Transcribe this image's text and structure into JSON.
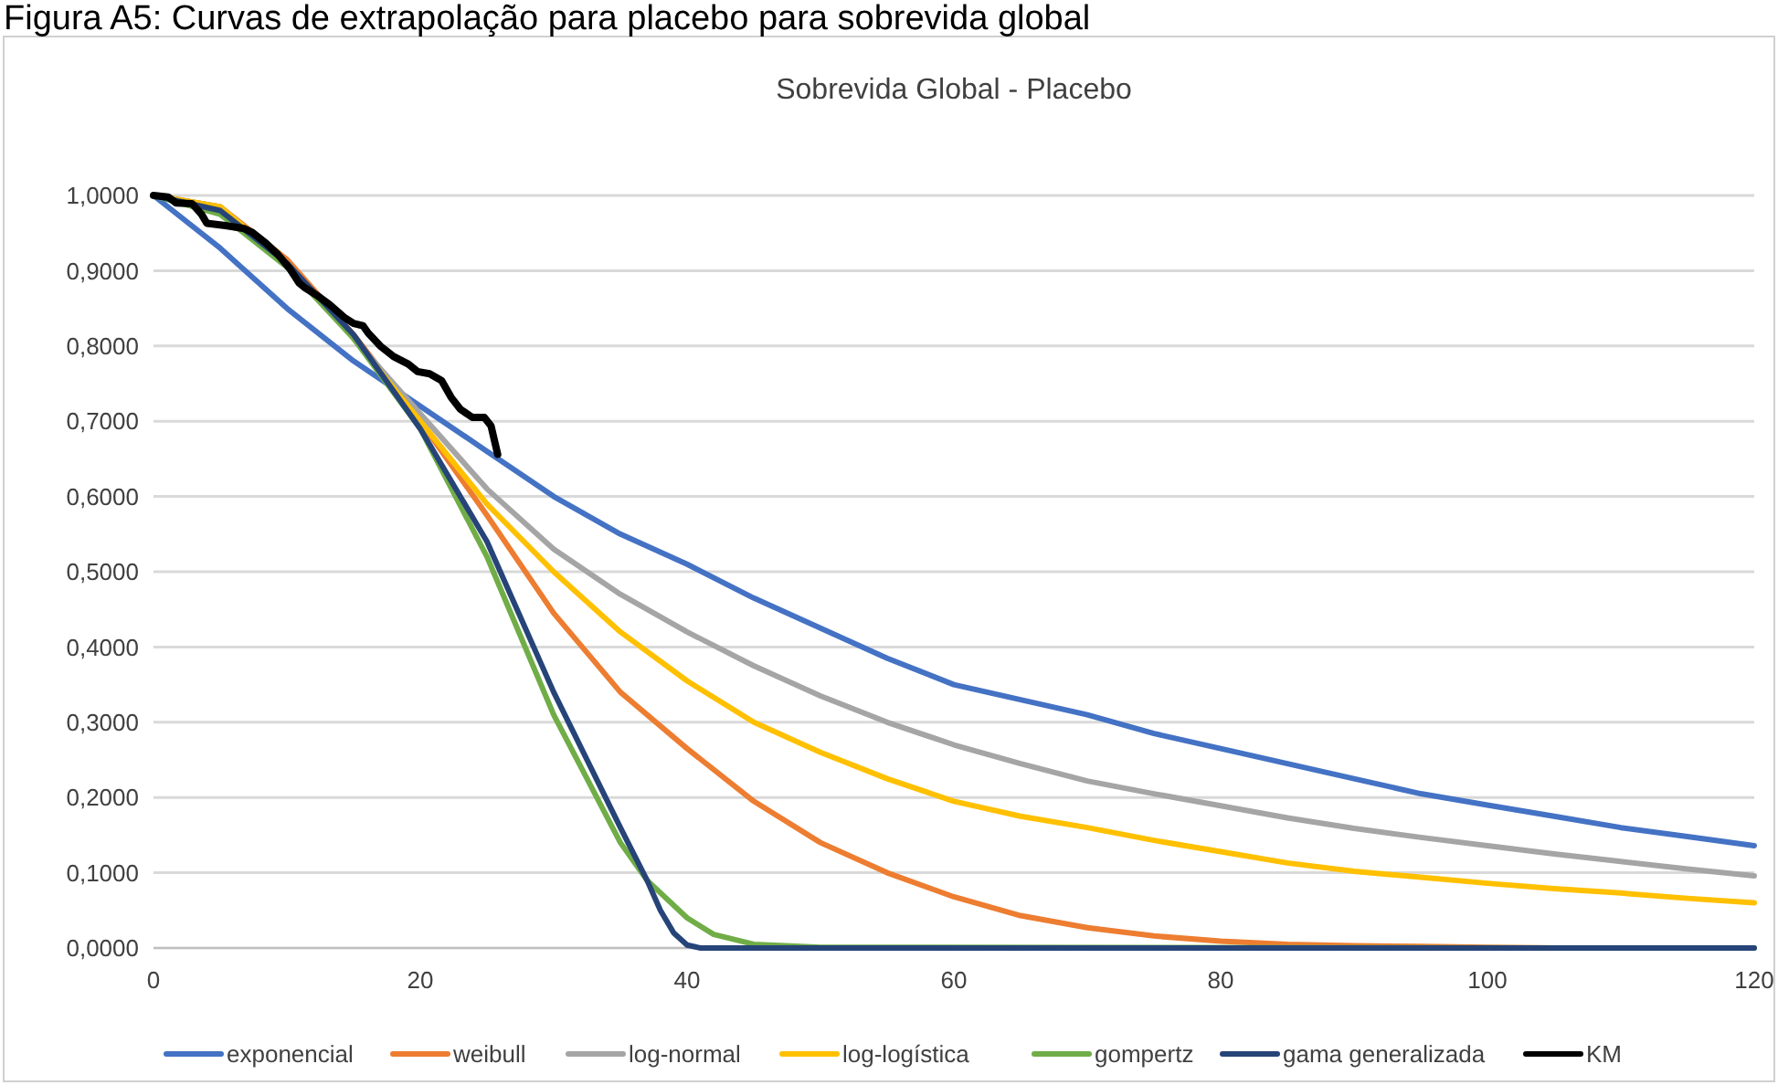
{
  "chart_data": {
    "type": "line",
    "title": "Figura A5: Curvas de extrapolação para placebo para sobrevida global",
    "subtitle": "Sobrevida Global - Placebo",
    "xlim": [
      0,
      120
    ],
    "xticks": [
      0,
      20,
      40,
      60,
      80,
      100,
      120
    ],
    "ylim": [
      0,
      1
    ],
    "yticks": [
      {
        "value": 0,
        "label": "0,0000"
      },
      {
        "value": 0.1,
        "label": "0,1000"
      },
      {
        "value": 0.2,
        "label": "0,2000"
      },
      {
        "value": 0.3,
        "label": "0,3000"
      },
      {
        "value": 0.4,
        "label": "0,4000"
      },
      {
        "value": 0.5,
        "label": "0,5000"
      },
      {
        "value": 0.6,
        "label": "0,6000"
      },
      {
        "value": 0.7,
        "label": "0,7000"
      },
      {
        "value": 0.8,
        "label": "0,8000"
      },
      {
        "value": 0.9,
        "label": "0,9000"
      },
      {
        "value": 1,
        "label": "1,0000"
      }
    ],
    "grid": "y",
    "legend": "bottom",
    "marker": "none",
    "line_style": "solid",
    "x": [
      0,
      5,
      10,
      15,
      20,
      25,
      30,
      35,
      40,
      45,
      50,
      55,
      60,
      65,
      70,
      75,
      80,
      85,
      90,
      95,
      100,
      105,
      110,
      115,
      120
    ],
    "series": [
      {
        "name": "exponencial",
        "color": "#4472c4",
        "values": [
          1,
          0.93,
          0.85,
          0.78,
          0.72,
          0.66,
          0.6,
          0.55,
          0.51,
          0.465,
          0.425,
          0.385,
          0.35,
          0.33,
          0.31,
          0.285,
          0.265,
          0.245,
          0.225,
          0.205,
          0.19,
          0.175,
          0.16,
          0.148,
          0.136
        ]
      },
      {
        "name": "weibull",
        "color": "#ed7d31",
        "values": [
          1,
          0.985,
          0.915,
          0.815,
          0.7,
          0.575,
          0.445,
          0.34,
          0.265,
          0.195,
          0.14,
          0.1,
          0.068,
          0.043,
          0.027,
          0.016,
          0.009,
          0.005,
          0.003,
          0.002,
          0.001,
          0,
          0,
          null,
          null
        ]
      },
      {
        "name": "log-normal",
        "color": "#a5a5a5",
        "values": [
          1,
          0.985,
          0.91,
          0.81,
          0.71,
          0.61,
          0.53,
          0.47,
          0.42,
          0.375,
          0.335,
          0.3,
          0.27,
          0.245,
          0.222,
          0.205,
          0.189,
          0.173,
          0.159,
          0.147,
          0.136,
          0.125,
          0.115,
          0.105,
          0.096
        ]
      },
      {
        "name": "log-logística",
        "color": "#ffc000",
        "values": [
          1,
          0.985,
          0.91,
          0.81,
          0.7,
          0.59,
          0.5,
          0.42,
          0.355,
          0.3,
          0.26,
          0.225,
          0.195,
          0.175,
          0.16,
          0.143,
          0.128,
          0.113,
          0.102,
          0.094,
          0.086,
          0.079,
          0.073,
          0.066,
          0.06
        ]
      },
      {
        "name": "gompertz",
        "color": "#70ad47",
        "x": [
          0,
          5,
          10,
          15,
          20,
          25,
          30,
          35,
          37,
          40,
          42,
          45,
          50,
          120
        ],
        "values": [
          1,
          0.975,
          0.905,
          0.81,
          0.69,
          0.52,
          0.31,
          0.14,
          0.09,
          0.04,
          0.018,
          0.005,
          0.001,
          0
        ]
      },
      {
        "name": "gama generalizada",
        "color": "#264478",
        "x": [
          0,
          5,
          10,
          15,
          20,
          25,
          30,
          35,
          37,
          38,
          39,
          40,
          41,
          120
        ],
        "values": [
          1,
          0.98,
          0.91,
          0.815,
          0.69,
          0.54,
          0.34,
          0.16,
          0.09,
          0.05,
          0.02,
          0.004,
          0,
          0
        ]
      },
      {
        "name": "KM",
        "color": "#000000",
        "x": [
          0,
          1.1,
          1.7,
          2.9,
          3.6,
          4.0,
          5.4,
          6.8,
          7.4,
          8.4,
          9.3,
          10.2,
          10.9,
          11.3,
          12.2,
          13.2,
          14.3,
          15.0,
          15.7,
          16.1,
          17.0,
          18.0,
          19.1,
          19.8,
          20.7,
          21.6,
          22.3,
          23.0,
          23.9,
          24.8,
          25.3,
          25.8
        ],
        "values": [
          1,
          0.998,
          0.99,
          0.989,
          0.975,
          0.963,
          0.96,
          0.956,
          0.951,
          0.937,
          0.922,
          0.903,
          0.884,
          0.878,
          0.868,
          0.855,
          0.838,
          0.83,
          0.827,
          0.817,
          0.8,
          0.786,
          0.776,
          0.766,
          0.763,
          0.754,
          0.732,
          0.716,
          0.705,
          0.705,
          0.694,
          0.656
        ]
      }
    ]
  }
}
